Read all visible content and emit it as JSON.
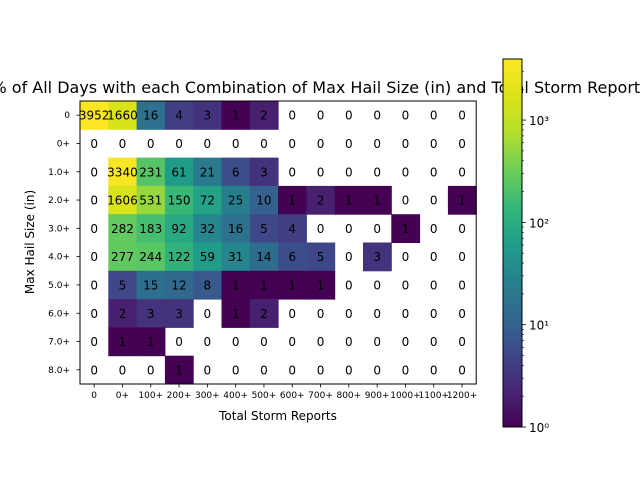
{
  "chart_data": {
    "type": "heatmap",
    "title": "% of All Days with each Combination of Max Hail Size (in) and Total Storm Reports",
    "xlabel": "Total Storm Reports",
    "ylabel": "Max Hail Size (in)",
    "x_categories": [
      "0",
      "0+",
      "100+",
      "200+",
      "300+",
      "400+",
      "500+",
      "600+",
      "700+",
      "800+",
      "900+",
      "1000+",
      "1100+",
      "1200+"
    ],
    "y_categories": [
      "0",
      "0+",
      "1.0+",
      "2.0+",
      "3.0+",
      "4.0+",
      "5.0+",
      "6.0+",
      "7.0+",
      "8.0+"
    ],
    "values": [
      [
        3952,
        1660,
        16,
        4,
        3,
        1,
        2,
        0,
        0,
        0,
        0,
        0,
        0,
        0
      ],
      [
        0,
        0,
        0,
        0,
        0,
        0,
        0,
        0,
        0,
        0,
        0,
        0,
        0,
        0
      ],
      [
        0,
        3340,
        231,
        61,
        21,
        6,
        3,
        0,
        0,
        0,
        0,
        0,
        0,
        0
      ],
      [
        0,
        1606,
        531,
        150,
        72,
        25,
        10,
        1,
        2,
        1,
        1,
        0,
        0,
        1
      ],
      [
        0,
        282,
        183,
        92,
        32,
        16,
        5,
        4,
        0,
        0,
        0,
        1,
        0,
        0
      ],
      [
        0,
        277,
        244,
        122,
        59,
        31,
        14,
        6,
        5,
        0,
        3,
        0,
        0,
        0
      ],
      [
        0,
        5,
        15,
        12,
        8,
        1,
        1,
        1,
        1,
        0,
        0,
        0,
        0,
        0
      ],
      [
        0,
        2,
        3,
        3,
        0,
        1,
        2,
        0,
        0,
        0,
        0,
        0,
        0,
        0
      ],
      [
        0,
        1,
        1,
        0,
        0,
        0,
        0,
        0,
        0,
        0,
        0,
        0,
        0,
        0
      ],
      [
        0,
        0,
        0,
        1,
        0,
        0,
        0,
        0,
        0,
        0,
        0,
        0,
        0,
        0
      ]
    ],
    "color_scale": "log",
    "colormap": "viridis",
    "zero_cells": "blank",
    "colorbar": {
      "min": 1,
      "max": 3952,
      "ticks": [
        {
          "value": 1,
          "label": "10⁰"
        },
        {
          "value": 10,
          "label": "10¹"
        },
        {
          "value": 100,
          "label": "10²"
        },
        {
          "value": 1000,
          "label": "10³"
        }
      ]
    },
    "grid": false
  }
}
